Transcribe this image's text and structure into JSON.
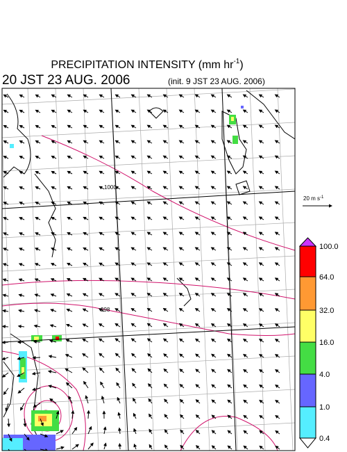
{
  "header": {
    "title": {
      "text": "PRECIPITATION INTENSITY (mm hr",
      "superscript": "-1",
      "suffix": ")"
    },
    "valid_time": "20 JST 23 AUG. 2006",
    "init_time": "(init. 9 JST 23 AUG. 2006)"
  },
  "map": {
    "contour_labels": [
      "1000",
      "998"
    ]
  },
  "wind_scale": {
    "text": "20 m s",
    "superscript": "-1"
  },
  "colorbar": {
    "labels": [
      "100.0",
      "64.0",
      "32.0",
      "16.0",
      "4.0",
      "1.0",
      "0.4"
    ],
    "colors": [
      "#cc33ff",
      "#ff0000",
      "#ff9933",
      "#ffff66",
      "#44dd44",
      "#6666ff",
      "#55eeff",
      "#ffffff"
    ]
  }
}
